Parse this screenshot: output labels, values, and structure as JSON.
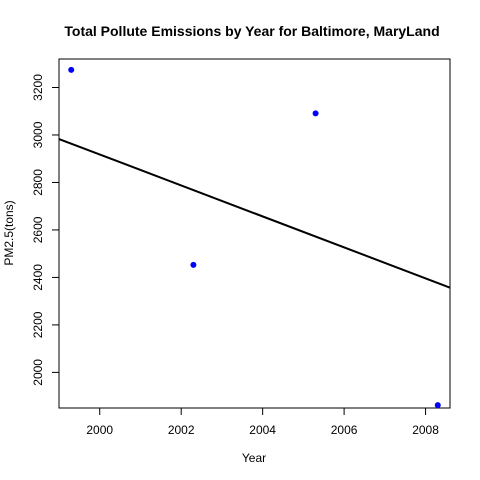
{
  "chart_data": {
    "type": "scatter",
    "title": "Total Pollute Emissions by Year for Baltimore, MaryLand",
    "xlabel": "Year",
    "ylabel": "PM2.5(tons)",
    "xlim": [
      1999.0,
      2008.6
    ],
    "ylim": [
      1850,
      3320
    ],
    "x_ticks": [
      2000,
      2002,
      2004,
      2006,
      2008
    ],
    "y_ticks": [
      2000,
      2200,
      2400,
      2600,
      2800,
      3000,
      3200
    ],
    "point_color": "#0000ff",
    "grid": false,
    "series": [
      {
        "x": [
          1999.3,
          2002.3,
          2005.3,
          2008.3
        ],
        "y": [
          3274,
          2453,
          3091,
          1862
        ]
      }
    ],
    "trend_line": {
      "x": [
        1999.0,
        2008.6
      ],
      "y": [
        2983,
        2357
      ]
    }
  }
}
